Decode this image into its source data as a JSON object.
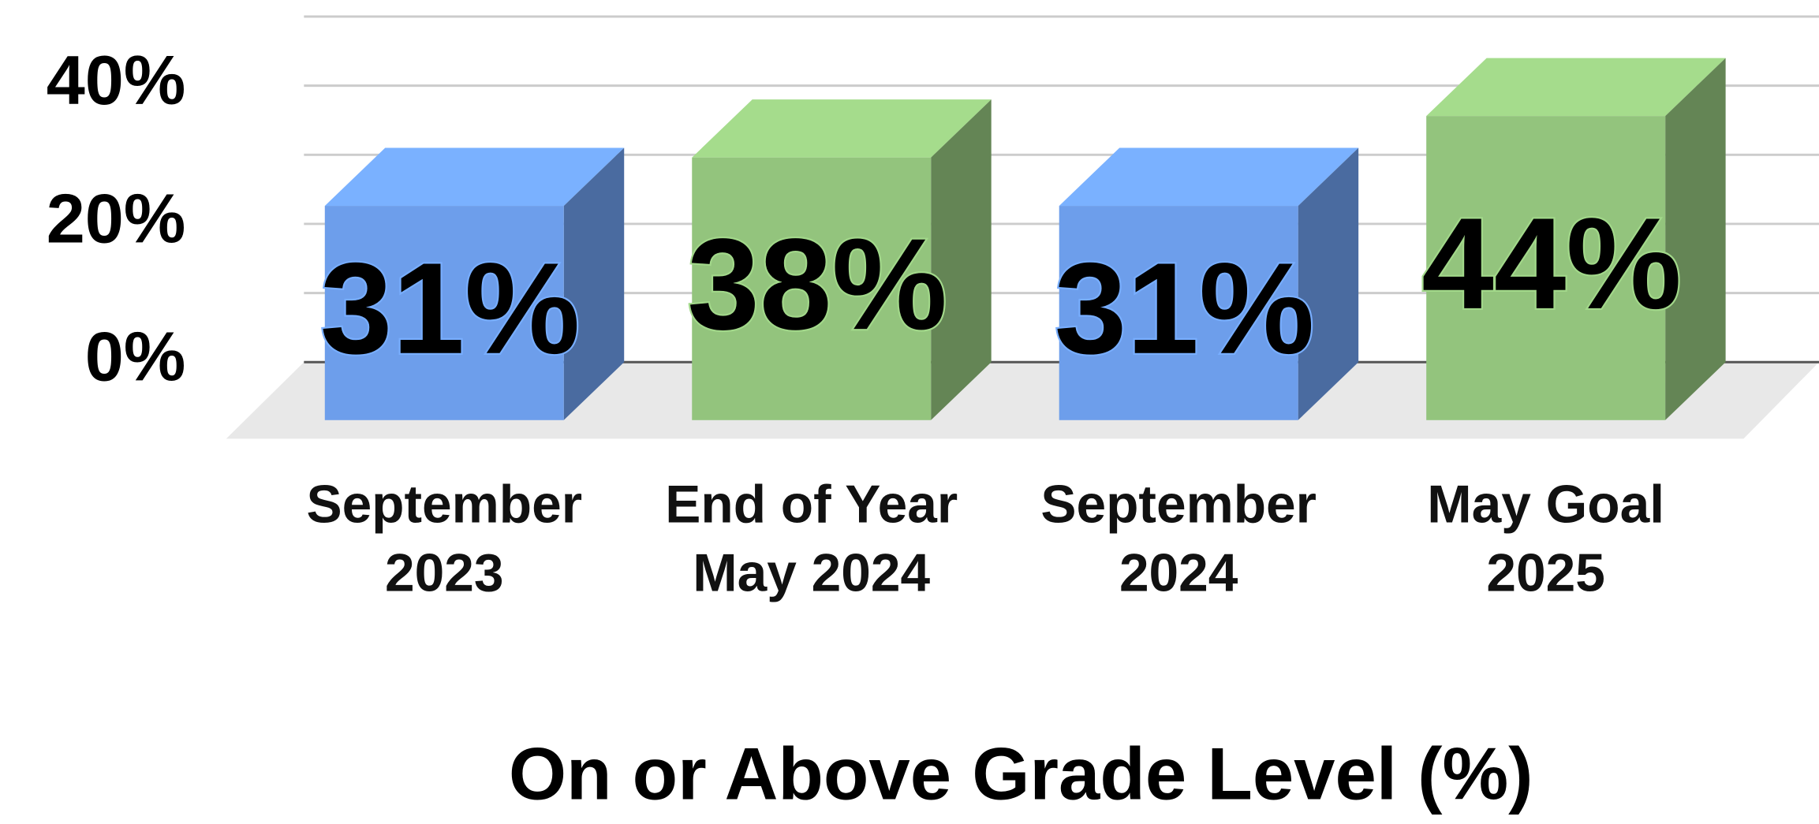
{
  "chart_data": {
    "type": "bar3d",
    "x_label": "On or Above Grade Level (%)",
    "categories": [
      [
        "September",
        "2023"
      ],
      [
        "End of Year",
        "May 2024"
      ],
      [
        "September",
        "2024"
      ],
      [
        "May Goal",
        "2025"
      ]
    ],
    "values": [
      31,
      38,
      31,
      44
    ],
    "value_labels": [
      "31%",
      "38%",
      "31%",
      "44%"
    ],
    "colors": [
      "#6d9eeb",
      "#93c47d",
      "#6d9eeb",
      "#93c47d"
    ],
    "ylim": [
      0,
      50
    ],
    "yticks": [
      {
        "value": 0,
        "label": "0%"
      },
      {
        "value": 20,
        "label": "20%"
      },
      {
        "value": 40,
        "label": "40%"
      }
    ],
    "ygrid": [
      0,
      10,
      20,
      30,
      40,
      50
    ],
    "grid": true
  }
}
